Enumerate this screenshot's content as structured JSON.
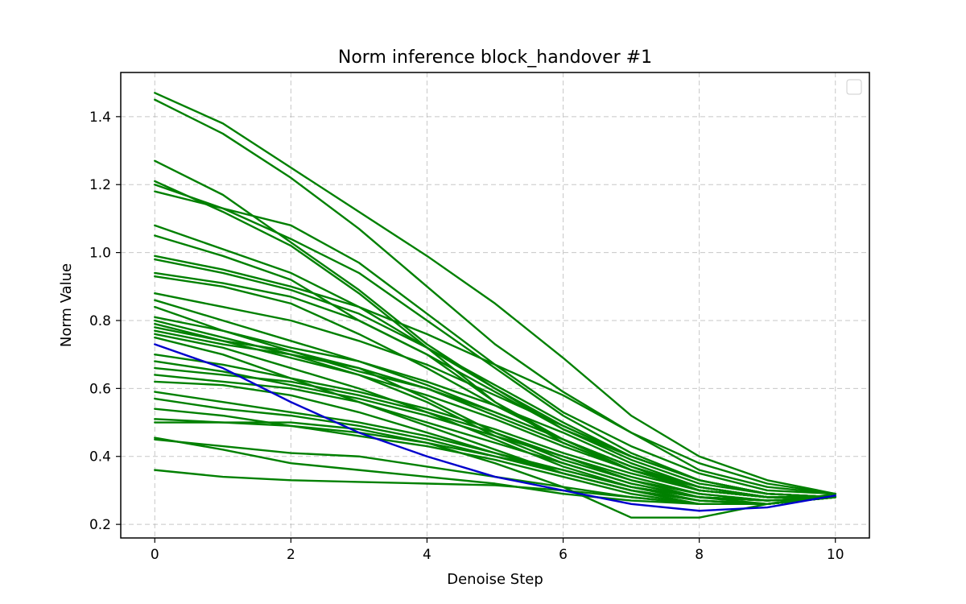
{
  "chart_data": {
    "type": "line",
    "title": "Norm inference block_handover #1",
    "xlabel": "Denoise Step",
    "ylabel": "Norm Value",
    "xlim": [
      -0.5,
      10.5
    ],
    "ylim": [
      0.16,
      1.53
    ],
    "xticks": [
      0,
      2,
      4,
      6,
      8,
      10
    ],
    "yticks": [
      0.2,
      0.4,
      0.6,
      0.8,
      1.0,
      1.2,
      1.4
    ],
    "grid": true,
    "legend": "top-right (empty)",
    "x": [
      0,
      1,
      2,
      3,
      4,
      5,
      6,
      7,
      8,
      9,
      10
    ],
    "colors": {
      "green": "#008000",
      "blue": "#0000cc"
    },
    "series": [
      {
        "color": "#008000",
        "values": [
          1.47,
          1.38,
          1.25,
          1.12,
          0.99,
          0.85,
          0.69,
          0.52,
          0.4,
          0.33,
          0.29
        ]
      },
      {
        "color": "#008000",
        "values": [
          1.45,
          1.35,
          1.22,
          1.07,
          0.9,
          0.73,
          0.59,
          0.47,
          0.36,
          0.31,
          0.29
        ]
      },
      {
        "color": "#008000",
        "values": [
          1.27,
          1.17,
          1.03,
          0.89,
          0.73,
          0.6,
          0.48,
          0.4,
          0.33,
          0.29,
          0.28
        ]
      },
      {
        "color": "#008000",
        "values": [
          1.21,
          1.12,
          1.02,
          0.88,
          0.72,
          0.56,
          0.44,
          0.36,
          0.31,
          0.28,
          0.28
        ]
      },
      {
        "color": "#008000",
        "values": [
          1.2,
          1.13,
          1.04,
          0.94,
          0.8,
          0.66,
          0.52,
          0.41,
          0.33,
          0.29,
          0.28
        ]
      },
      {
        "color": "#008000",
        "values": [
          1.18,
          1.13,
          1.08,
          0.97,
          0.82,
          0.67,
          0.53,
          0.43,
          0.35,
          0.3,
          0.29
        ]
      },
      {
        "color": "#008000",
        "values": [
          1.08,
          1.01,
          0.94,
          0.84,
          0.72,
          0.6,
          0.49,
          0.4,
          0.33,
          0.29,
          0.28
        ]
      },
      {
        "color": "#008000",
        "values": [
          1.05,
          0.99,
          0.92,
          0.8,
          0.7,
          0.56,
          0.45,
          0.36,
          0.3,
          0.28,
          0.28
        ]
      },
      {
        "color": "#008000",
        "values": [
          0.99,
          0.95,
          0.9,
          0.84,
          0.76,
          0.67,
          0.58,
          0.47,
          0.38,
          0.32,
          0.29
        ]
      },
      {
        "color": "#008000",
        "values": [
          0.98,
          0.94,
          0.89,
          0.82,
          0.72,
          0.61,
          0.5,
          0.4,
          0.33,
          0.29,
          0.28
        ]
      },
      {
        "color": "#008000",
        "values": [
          0.94,
          0.91,
          0.87,
          0.8,
          0.7,
          0.59,
          0.48,
          0.39,
          0.32,
          0.29,
          0.28
        ]
      },
      {
        "color": "#008000",
        "values": [
          0.93,
          0.9,
          0.85,
          0.76,
          0.66,
          0.55,
          0.45,
          0.37,
          0.31,
          0.28,
          0.28
        ]
      },
      {
        "color": "#008000",
        "values": [
          0.88,
          0.84,
          0.8,
          0.74,
          0.67,
          0.58,
          0.49,
          0.4,
          0.33,
          0.29,
          0.28
        ]
      },
      {
        "color": "#008000",
        "values": [
          0.86,
          0.8,
          0.74,
          0.68,
          0.61,
          0.53,
          0.45,
          0.37,
          0.31,
          0.28,
          0.28
        ]
      },
      {
        "color": "#008000",
        "values": [
          0.84,
          0.77,
          0.71,
          0.65,
          0.6,
          0.52,
          0.44,
          0.36,
          0.3,
          0.28,
          0.28
        ]
      },
      {
        "color": "#008000",
        "values": [
          0.81,
          0.77,
          0.72,
          0.68,
          0.62,
          0.55,
          0.47,
          0.38,
          0.31,
          0.28,
          0.28
        ]
      },
      {
        "color": "#008000",
        "values": [
          0.8,
          0.75,
          0.7,
          0.66,
          0.6,
          0.53,
          0.45,
          0.37,
          0.3,
          0.28,
          0.28
        ]
      },
      {
        "color": "#008000",
        "values": [
          0.79,
          0.74,
          0.69,
          0.64,
          0.58,
          0.51,
          0.43,
          0.36,
          0.3,
          0.28,
          0.28
        ]
      },
      {
        "color": "#008000",
        "values": [
          0.78,
          0.74,
          0.71,
          0.66,
          0.57,
          0.47,
          0.39,
          0.33,
          0.28,
          0.27,
          0.28
        ]
      },
      {
        "color": "#008000",
        "values": [
          0.77,
          0.73,
          0.7,
          0.64,
          0.56,
          0.46,
          0.38,
          0.32,
          0.28,
          0.27,
          0.28
        ]
      },
      {
        "color": "#008000",
        "values": [
          0.76,
          0.72,
          0.66,
          0.6,
          0.53,
          0.45,
          0.37,
          0.31,
          0.27,
          0.26,
          0.28
        ]
      },
      {
        "color": "#008000",
        "values": [
          0.75,
          0.7,
          0.63,
          0.56,
          0.49,
          0.42,
          0.35,
          0.3,
          0.26,
          0.26,
          0.28
        ]
      },
      {
        "color": "#008000",
        "values": [
          0.7,
          0.67,
          0.63,
          0.59,
          0.54,
          0.48,
          0.41,
          0.35,
          0.3,
          0.28,
          0.28
        ]
      },
      {
        "color": "#008000",
        "values": [
          0.68,
          0.65,
          0.61,
          0.57,
          0.52,
          0.46,
          0.4,
          0.33,
          0.29,
          0.27,
          0.28
        ]
      },
      {
        "color": "#008000",
        "values": [
          0.66,
          0.64,
          0.62,
          0.58,
          0.53,
          0.47,
          0.4,
          0.34,
          0.29,
          0.27,
          0.28
        ]
      },
      {
        "color": "#008000",
        "values": [
          0.64,
          0.62,
          0.6,
          0.56,
          0.5,
          0.44,
          0.38,
          0.32,
          0.28,
          0.26,
          0.28
        ]
      },
      {
        "color": "#008000",
        "values": [
          0.62,
          0.61,
          0.58,
          0.53,
          0.47,
          0.41,
          0.35,
          0.3,
          0.27,
          0.26,
          0.28
        ]
      },
      {
        "color": "#008000",
        "values": [
          0.59,
          0.56,
          0.53,
          0.5,
          0.46,
          0.41,
          0.36,
          0.31,
          0.28,
          0.27,
          0.28
        ]
      },
      {
        "color": "#008000",
        "values": [
          0.57,
          0.54,
          0.52,
          0.49,
          0.45,
          0.4,
          0.35,
          0.3,
          0.27,
          0.26,
          0.28
        ]
      },
      {
        "color": "#008000",
        "values": [
          0.54,
          0.52,
          0.49,
          0.46,
          0.43,
          0.39,
          0.34,
          0.29,
          0.26,
          0.26,
          0.28
        ]
      },
      {
        "color": "#008000",
        "values": [
          0.51,
          0.5,
          0.49,
          0.47,
          0.44,
          0.4,
          0.36,
          0.31,
          0.28,
          0.27,
          0.28
        ]
      },
      {
        "color": "#008000",
        "values": [
          0.5,
          0.5,
          0.5,
          0.48,
          0.44,
          0.38,
          0.31,
          0.22,
          0.22,
          0.26,
          0.29
        ]
      },
      {
        "color": "#008000",
        "values": [
          0.455,
          0.42,
          0.38,
          0.36,
          0.34,
          0.32,
          0.29,
          0.27,
          0.26,
          0.26,
          0.28
        ]
      },
      {
        "color": "#008000",
        "values": [
          0.45,
          0.43,
          0.41,
          0.4,
          0.37,
          0.34,
          0.31,
          0.28,
          0.26,
          0.26,
          0.28
        ]
      },
      {
        "color": "#008000",
        "values": [
          0.36,
          0.34,
          0.33,
          0.325,
          0.32,
          0.315,
          0.3,
          0.28,
          0.26,
          0.26,
          0.28
        ]
      },
      {
        "color": "#0000cc",
        "values": [
          0.73,
          0.66,
          0.56,
          0.47,
          0.4,
          0.34,
          0.3,
          0.26,
          0.24,
          0.25,
          0.285
        ]
      }
    ]
  }
}
